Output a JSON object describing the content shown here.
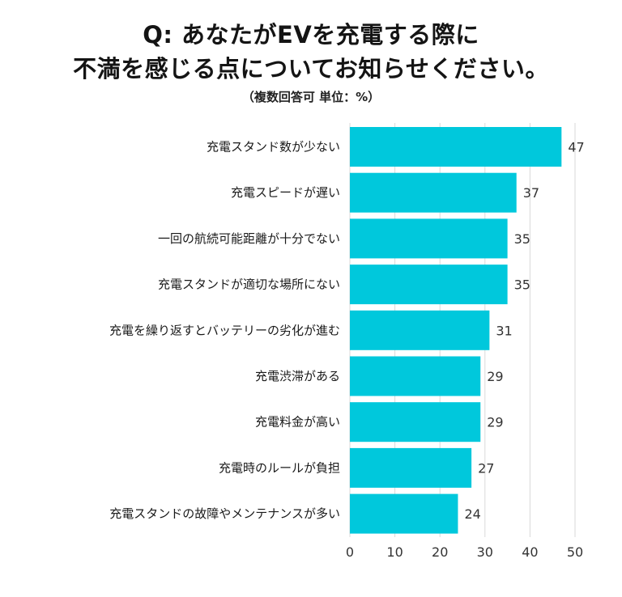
{
  "chart_data": {
    "type": "bar",
    "orientation": "horizontal",
    "title_lines": [
      "Q: あなたがEVを充電する際に",
      "不満を感じる点についてお知らせください。"
    ],
    "subtitle": "（複数回答可 単位：%）",
    "categories": [
      "充電スタンド数が少ない",
      "充電スピードが遅い",
      "一回の航続可能距離が十分でない",
      "充電スタンドが適切な場所にない",
      "充電を繰り返すとバッテリーの劣化が進む",
      "充電渋滞がある",
      "充電料金が高い",
      "充電時のルールが負担",
      "充電スタンドの故障やメンテナンスが多い"
    ],
    "values": [
      47,
      37,
      35,
      35,
      31,
      29,
      29,
      27,
      24
    ],
    "value_labels": [
      "47",
      "37",
      "35",
      "35",
      "31",
      "29",
      "29",
      "27",
      "24"
    ],
    "xlim": [
      0,
      50
    ],
    "xticks": [
      0,
      10,
      20,
      30,
      40,
      50
    ],
    "xtick_labels": [
      "0",
      "10",
      "20",
      "30",
      "40",
      "50"
    ],
    "grid": true,
    "bar_color": "#00C8DC",
    "grid_color": "#D9D9D9"
  }
}
